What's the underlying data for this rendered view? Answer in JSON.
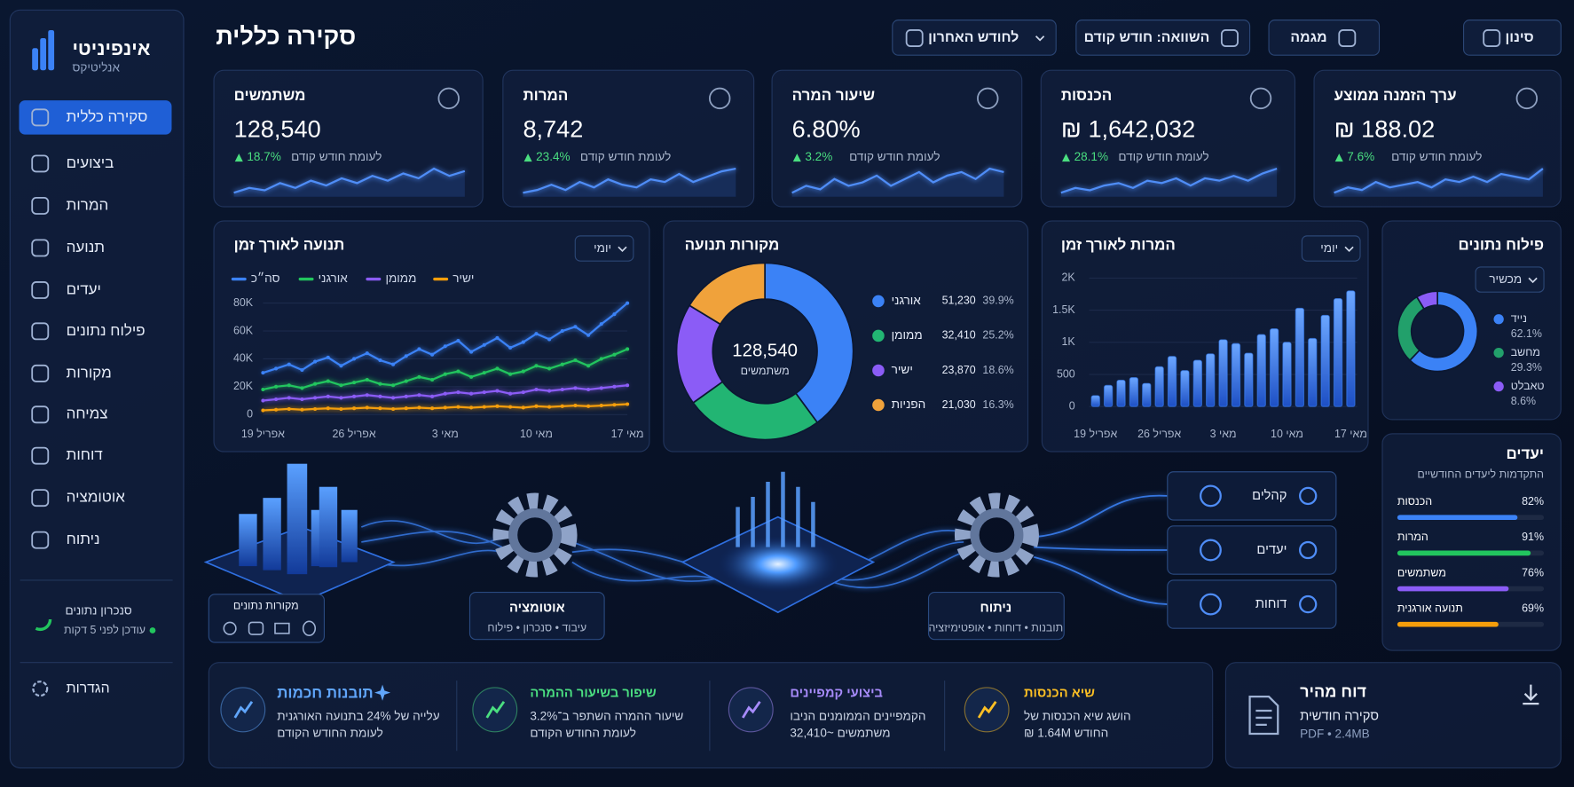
{
  "sidebar": {
    "brand": "אינפיניטי",
    "brand_sub": "אנליטיקס",
    "nav": [
      "סקירה כללית",
      "ביצועים",
      "המרות",
      "תנועה",
      "יעדים",
      "פילוח נתונים",
      "מקורות",
      "צמיחה",
      "דוחות",
      "אוטומציה",
      "ניתוח"
    ],
    "sync_title": "סנכרון נתונים",
    "sync_status": "עודכן לפני 5 דקות",
    "settings": "הגדרות"
  },
  "header": {
    "title": "סקירה כללית",
    "period": "לחודש האחרון",
    "compare": "השוואה: חודש קודם",
    "trend": "מגמה",
    "filter": "סינון"
  },
  "kpis": [
    {
      "label": "משתמשים",
      "value": "128,540",
      "change": "18.7%",
      "compare": "לעומת חודש קודם",
      "spark": [
        3,
        4,
        3.5,
        5,
        4,
        5.5,
        4.5,
        6,
        5,
        6.5,
        5.5,
        7,
        6,
        8,
        6.5,
        7.5
      ]
    },
    {
      "label": "המרות",
      "value": "8,742",
      "change": "23.4%",
      "compare": "לעומת חודש קודם",
      "spark": [
        3,
        3.5,
        4.5,
        3.5,
        5,
        4,
        5.5,
        4.5,
        4,
        5.5,
        5,
        6.5,
        5,
        6,
        7,
        7.5
      ]
    },
    {
      "label": "שיעור המרה",
      "value": "6.80%",
      "change": "3.2%",
      "compare": "לעומת חודש קודם",
      "spark": [
        3,
        4,
        3.5,
        5,
        4,
        4.5,
        5.5,
        4,
        5,
        6,
        4.5,
        5.5,
        6,
        5,
        6.5,
        6
      ]
    },
    {
      "label": "הכנסות",
      "value": "₪ 1,642,032",
      "change": "28.1%",
      "compare": "לעומת חודש קודם",
      "spark": [
        3,
        4,
        3.5,
        4.5,
        5,
        4,
        5.5,
        5,
        6,
        4.5,
        6,
        5.5,
        6.5,
        5.5,
        7,
        8
      ]
    },
    {
      "label": "ערך הזמנה ממוצע",
      "value": "₪ 188.02",
      "change": "7.6%",
      "compare": "לעומת חודש קודם",
      "spark": [
        3,
        4,
        3.5,
        5,
        4,
        4.5,
        5,
        4,
        5.5,
        5,
        6,
        5,
        6.5,
        6,
        5.5,
        7.5
      ]
    }
  ],
  "chart_data": [
    {
      "type": "line",
      "title": "תנועה לאורך זמן",
      "period": "יומי",
      "categories": [
        "19 אפריל",
        null,
        null,
        null,
        null,
        null,
        null,
        "26 אפריל",
        null,
        null,
        null,
        null,
        null,
        null,
        "3 מאי",
        null,
        null,
        null,
        null,
        null,
        null,
        "10 מאי",
        null,
        null,
        null,
        null,
        null,
        null,
        "17 מאי"
      ],
      "series": [
        {
          "name": "סה״כ",
          "color": "#3b82f6",
          "values": [
            30000,
            33000,
            36000,
            32000,
            38000,
            41000,
            35000,
            40000,
            44000,
            39000,
            36000,
            42000,
            47000,
            43000,
            49000,
            53000,
            45000,
            50000,
            55000,
            48000,
            52000,
            58000,
            54000,
            60000,
            63000,
            57000,
            65000,
            72000,
            80000
          ]
        },
        {
          "name": "אורגני",
          "color": "#22c55e",
          "values": [
            18000,
            20000,
            21000,
            19000,
            22000,
            24000,
            21000,
            23000,
            25000,
            22000,
            21000,
            24000,
            27000,
            25000,
            29000,
            31000,
            27000,
            30000,
            33000,
            29000,
            31000,
            35000,
            33000,
            36000,
            39000,
            35000,
            40000,
            43000,
            47000
          ]
        },
        {
          "name": "ממומן",
          "color": "#8b5cf6",
          "values": [
            10000,
            11000,
            12000,
            11000,
            12000,
            13000,
            12000,
            13000,
            14000,
            13000,
            12000,
            13000,
            14000,
            13000,
            15000,
            16000,
            15000,
            16000,
            17000,
            15000,
            16000,
            18000,
            17000,
            18000,
            19000,
            18000,
            19000,
            20000,
            21000
          ]
        },
        {
          "name": "ישיר",
          "color": "#f59e0b",
          "values": [
            3000,
            3500,
            4000,
            3500,
            4000,
            4500,
            4000,
            4500,
            5000,
            4500,
            4000,
            4500,
            5000,
            4500,
            5000,
            5500,
            5000,
            5500,
            6000,
            5500,
            5000,
            6000,
            5500,
            6000,
            6500,
            6000,
            6500,
            7000,
            7500
          ]
        }
      ],
      "ylim": [
        0,
        85000
      ],
      "yticks": [
        0,
        {
          "value": 20000,
          "label": "20K"
        },
        {
          "value": 40000,
          "label": "40K"
        },
        {
          "value": 60000,
          "label": "60K"
        },
        {
          "value": 80000,
          "label": "80K"
        }
      ]
    },
    {
      "type": "pie",
      "title": "מקורות תנועה",
      "center_value": "128,540",
      "center_label": "משתמשים",
      "categories": [
        "אורגני",
        "ממומן",
        "ישיר",
        "הפניות"
      ],
      "values": [
        39.9,
        25.2,
        18.6,
        16.3
      ],
      "value_labels": [
        "39.9%",
        "25.2%",
        "18.6%",
        "16.3%"
      ],
      "counts": [
        "51,230",
        "32,410",
        "23,870",
        "21,030"
      ],
      "colors": [
        "#3b82f6",
        "#22b573",
        "#8b5cf6",
        "#f0a23b"
      ]
    },
    {
      "type": "bar",
      "title": "המרות לאורך זמן",
      "period": "יומי",
      "color": "#3b82f6",
      "categories": [
        "19 אפריל",
        null,
        null,
        null,
        null,
        "26 אפריל",
        null,
        null,
        null,
        null,
        "3 מאי",
        null,
        null,
        null,
        null,
        "10 מאי",
        null,
        null,
        null,
        null,
        "17 מאי"
      ],
      "values": [
        170,
        330,
        410,
        450,
        360,
        620,
        780,
        560,
        720,
        820,
        1040,
        980,
        830,
        1120,
        1210,
        1000,
        1530,
        1060,
        1420,
        1680,
        1800
      ],
      "ylim": [
        0,
        2000
      ],
      "yticks": [
        0,
        500,
        {
          "value": 1000,
          "label": "1K"
        },
        {
          "value": 1500,
          "label": "1.5K"
        },
        {
          "value": 2000,
          "label": "2K"
        }
      ]
    },
    {
      "type": "pie",
      "title": "פילוח נתונים",
      "period": "מכשיר",
      "categories": [
        "נייד",
        "מחשב",
        "טאבלט"
      ],
      "values": [
        62.1,
        29.3,
        8.6
      ],
      "value_labels": [
        "62.1%",
        "29.3%",
        "8.6%"
      ],
      "colors": [
        "#3b82f6",
        "#22a06b",
        "#8b5cf6"
      ]
    }
  ],
  "goals": {
    "title": "יעדים",
    "subtitle": "התקדמות ליעדים החודשיים",
    "items": [
      {
        "name": "הכנסות",
        "value": 82,
        "label": "82%",
        "color": "#3b82f6"
      },
      {
        "name": "המרות",
        "value": 91,
        "label": "91%",
        "color": "#22c55e"
      },
      {
        "name": "משתמשים",
        "value": 76,
        "label": "76%",
        "color": "#8b5cf6"
      },
      {
        "name": "תנועה אורגנית",
        "value": 69,
        "label": "69%",
        "color": "#f59e0b"
      }
    ]
  },
  "flow": {
    "sources_label": "מקורות נתונים",
    "automation": {
      "title": "אוטומציה",
      "sub": "עיבוד • סנכרון • פילוח"
    },
    "analysis": {
      "title": "ניתוח",
      "sub": "תובנות • דוחות • אופטימיזציה"
    },
    "cards": [
      "קהלים",
      "יעדים",
      "דוחות"
    ]
  },
  "insights": {
    "items": [
      {
        "title": "תובנות חכמות",
        "line1": "עלייה של 24% בתנועה האורגנית",
        "line2": "לעומת החודש הקודם",
        "color": "#60a5fa"
      },
      {
        "title": "שיפור בשיעור ההמרה",
        "line1": "שיעור ההמרה השתפר ב־3.2%",
        "line2": "לעומת החודש הקודם",
        "color": "#4ade80"
      },
      {
        "title": "ביצועי קמפיינים",
        "line1": "הקמפיינים הממומנים הניבו",
        "line2": "משתמשים ~32,410",
        "color": "#a78bfa"
      },
      {
        "title": "שיא הכנסות",
        "line1": "הושג שיא הכנסות של",
        "line2": "החודש 1.64M ₪",
        "color": "#fbbf24"
      }
    ]
  },
  "report": {
    "title": "דוח מהיר",
    "sub": "סקירה חודשית",
    "meta": "PDF • 2.4MB"
  }
}
